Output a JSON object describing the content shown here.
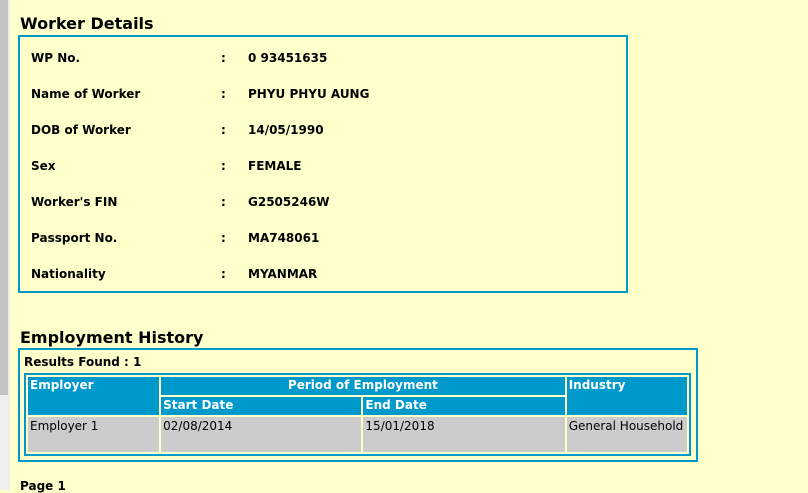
{
  "worker_details": {
    "title": "Worker Details",
    "fields": [
      {
        "label": "WP No.",
        "value": "0 93451635"
      },
      {
        "label": "Name of Worker",
        "value": "PHYU PHYU AUNG"
      },
      {
        "label": "DOB of Worker",
        "value": "14/05/1990"
      },
      {
        "label": "Sex",
        "value": "FEMALE"
      },
      {
        "label": "Worker's FIN",
        "value": "G2505246W"
      },
      {
        "label": "Passport No.",
        "value": "MA748061"
      },
      {
        "label": "Nationality",
        "value": "MYANMAR"
      }
    ],
    "separator": ":"
  },
  "employment_history": {
    "title": "Employment History",
    "results": "Results Found : 1",
    "headers": {
      "employer": "Employer",
      "period": "Period of Employment",
      "start": "Start Date",
      "end": "End Date",
      "industry": "Industry"
    },
    "rows": [
      {
        "employer": "Employer 1",
        "start": "02/08/2014",
        "end": "15/01/2018",
        "industry": "General Household"
      }
    ]
  },
  "pagination": {
    "label": "Page 1"
  },
  "colors": {
    "background": "#ffffcc",
    "accent": "#0099cc",
    "cell": "#cccccc"
  }
}
